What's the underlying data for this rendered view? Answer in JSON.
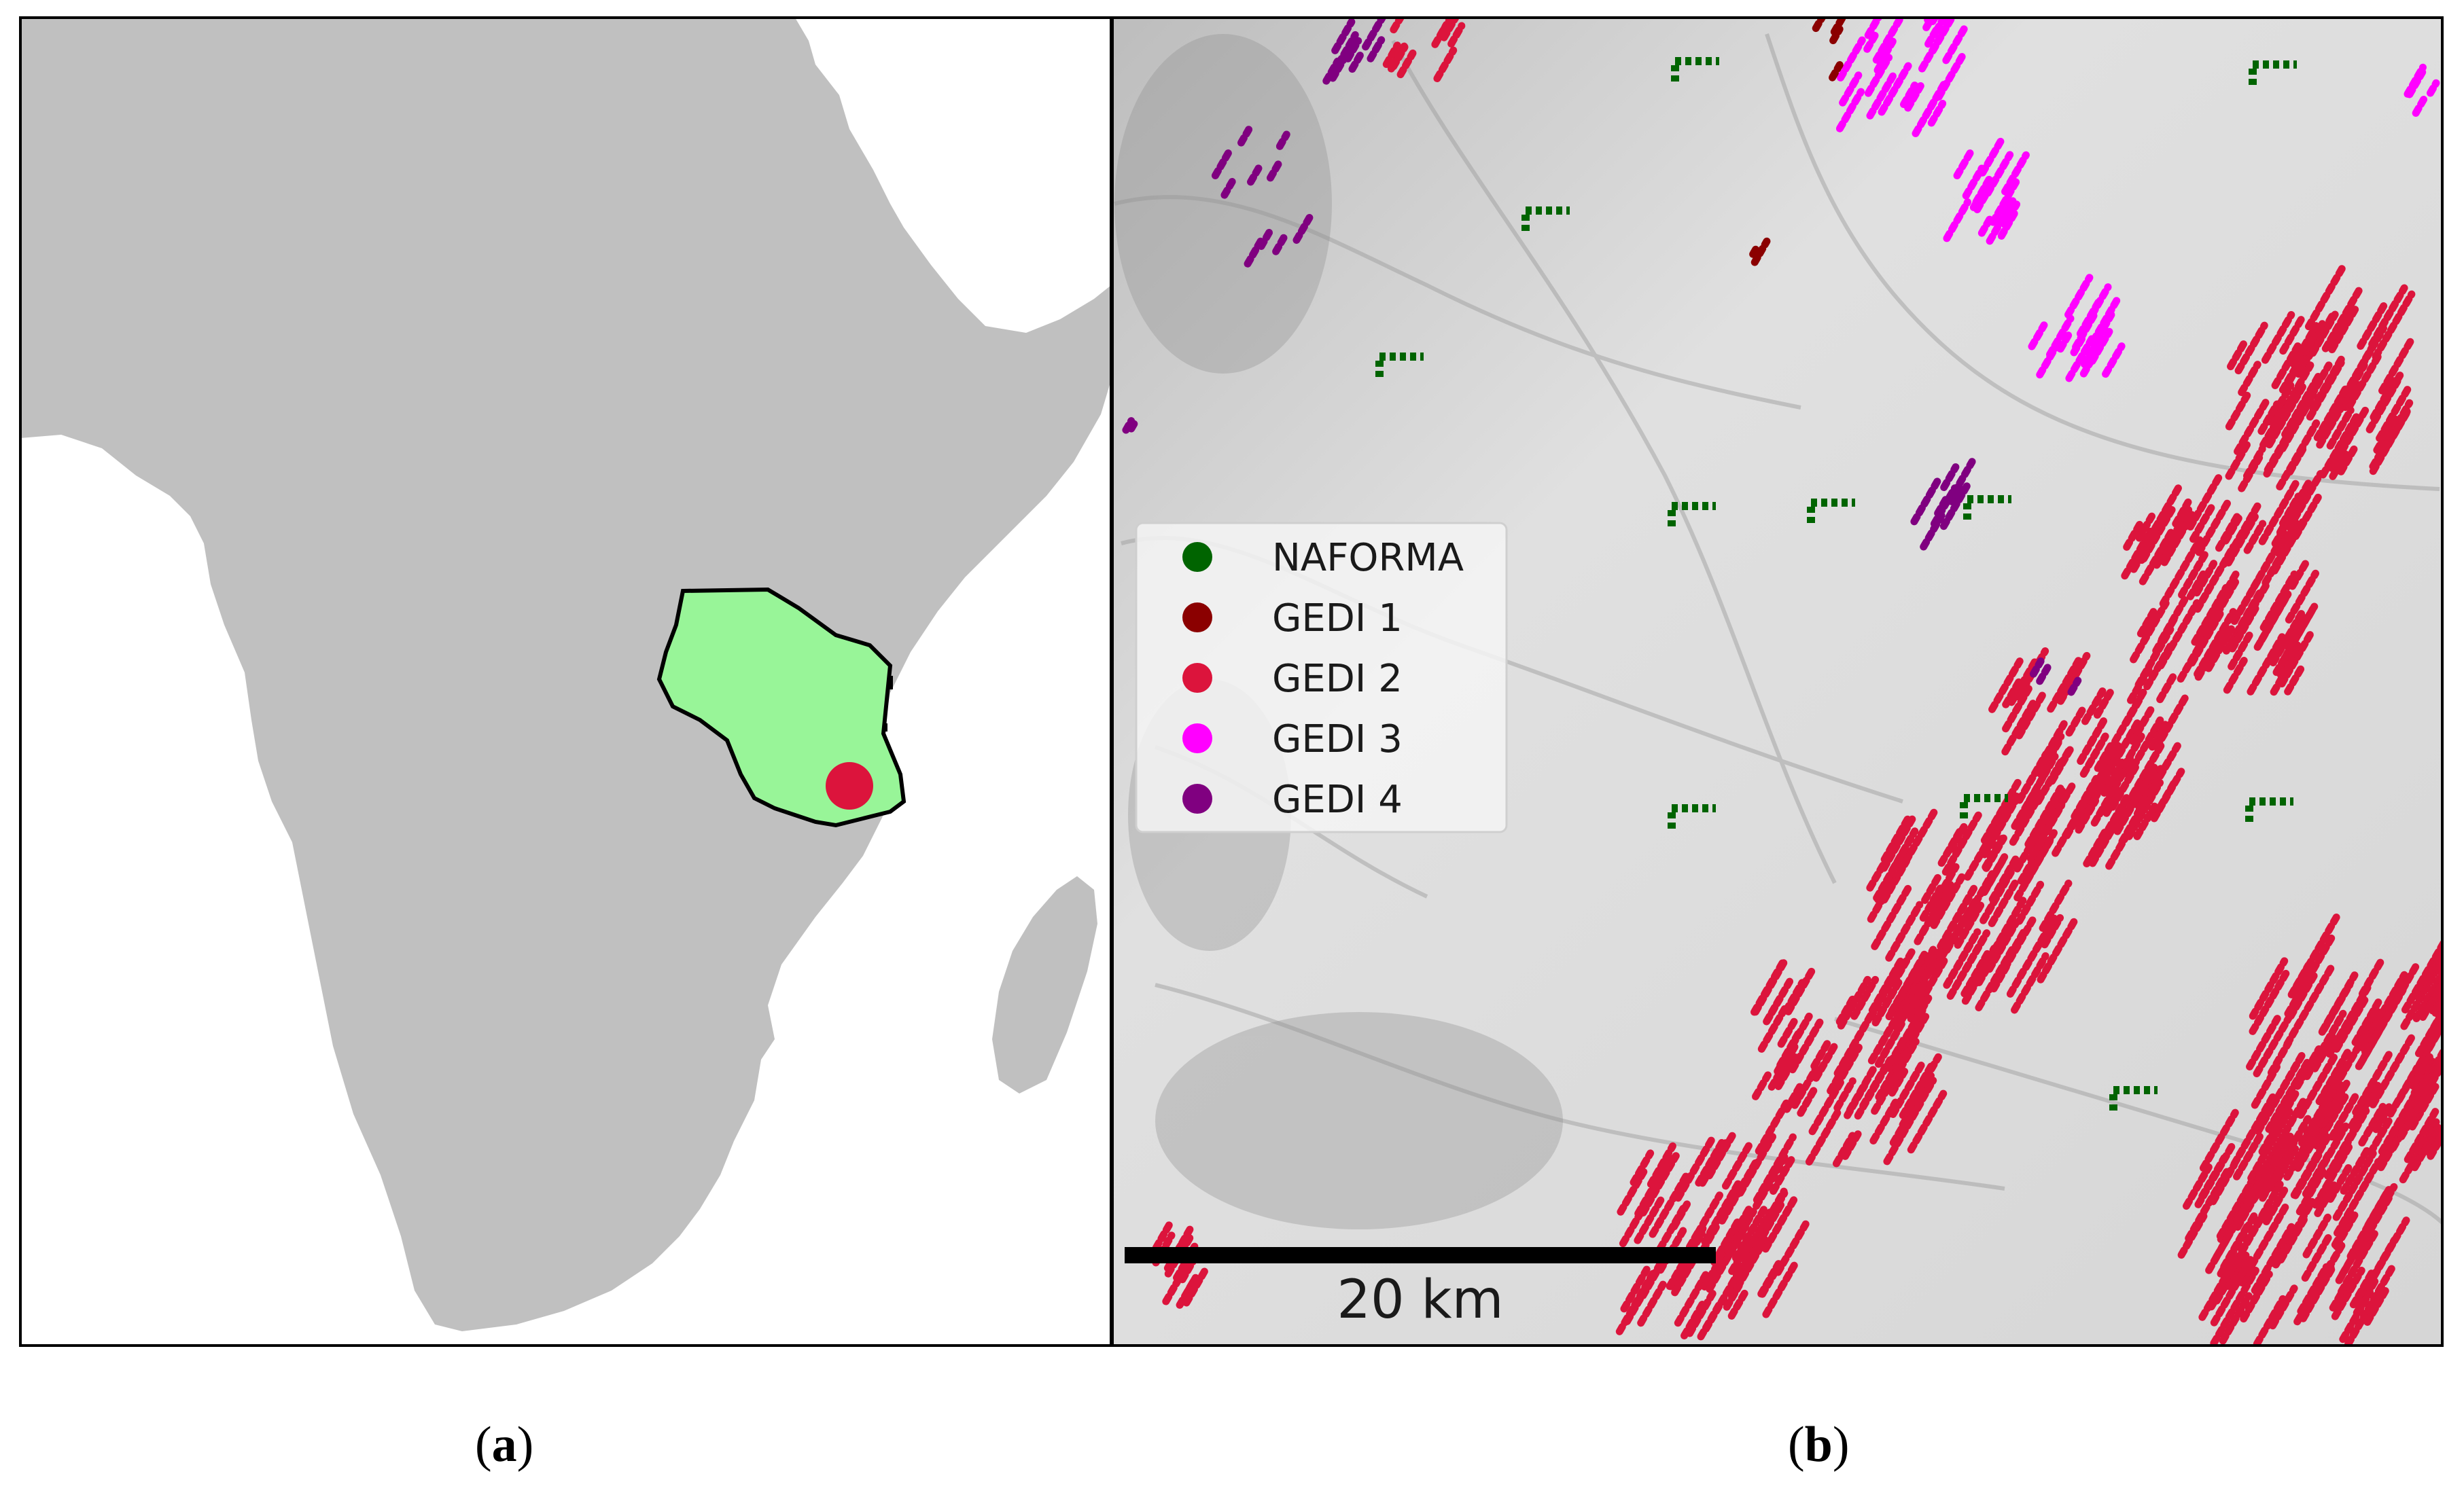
{
  "panel_a": {
    "caption_letter": "a",
    "colors": {
      "land": "#c0c0c0",
      "sea": "#ffffff",
      "country_fill": "#98f598",
      "country_outline": "#000000",
      "site_marker": "#dc143c"
    }
  },
  "panel_b": {
    "caption_letter": "b",
    "legend": [
      {
        "label": "NAFORMA",
        "color": "#006400"
      },
      {
        "label": "GEDI 1",
        "color": "#8b0000"
      },
      {
        "label": "GEDI 2",
        "color": "#dc143c"
      },
      {
        "label": "GEDI 3",
        "color": "#ff00ff"
      },
      {
        "label": "GEDI 4",
        "color": "#800080"
      }
    ],
    "scale_bar": {
      "label": "20 km"
    },
    "background": "hillshade"
  }
}
